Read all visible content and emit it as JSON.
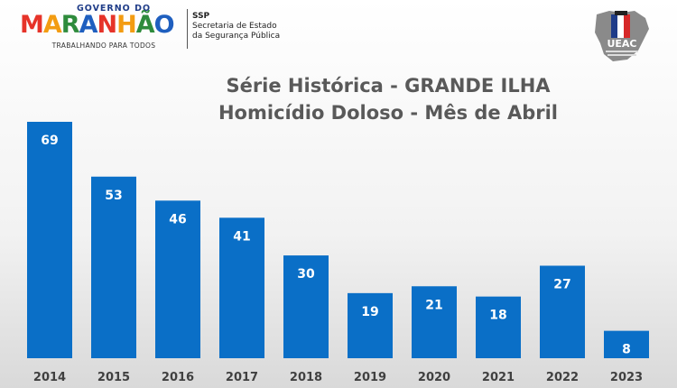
{
  "header": {
    "gov_top": "GOVERNO DO",
    "gov_main_letters": [
      "M",
      "A",
      "R",
      "A",
      "N",
      "H",
      "Ã",
      "O"
    ],
    "gov_sub": "TRABALHANDO PARA TODOS",
    "ssp_title": "SSP",
    "ssp_line1": "Secretaria de Estado",
    "ssp_line2": "da Segurança Pública",
    "corner_logo_text": "UEAC"
  },
  "colors": {
    "bar": "#0a6fc7",
    "title": "#595959"
  },
  "chart_data": {
    "type": "bar",
    "title_line1": "Série Histórica - GRANDE ILHA",
    "title_line2": "Homicídio Doloso - Mês de Abril",
    "xlabel": "",
    "ylabel": "",
    "categories": [
      "2014",
      "2015",
      "2016",
      "2017",
      "2018",
      "2019",
      "2020",
      "2021",
      "2022",
      "2023"
    ],
    "values": [
      69,
      53,
      46,
      41,
      30,
      19,
      21,
      18,
      27,
      8
    ],
    "ylim": [
      0,
      69
    ],
    "grid": false,
    "legend": "none"
  }
}
